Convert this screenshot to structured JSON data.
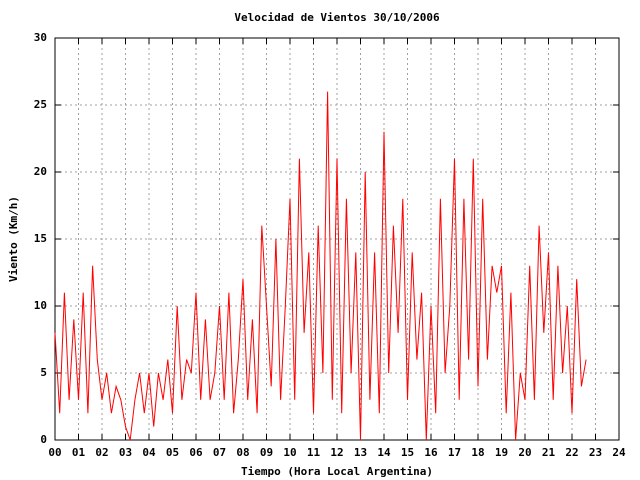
{
  "chart_data": {
    "type": "line",
    "title": "Velocidad de Vientos 30/10/2006",
    "xlabel": "Tiempo (Hora Local Argentina)",
    "ylabel": "Viento (Km/h)",
    "color": "#ff0000",
    "grid": true,
    "xlim": [
      0,
      24
    ],
    "xticks": [
      {
        "value": 0,
        "label": "00"
      },
      {
        "value": 1,
        "label": "01"
      },
      {
        "value": 2,
        "label": "02"
      },
      {
        "value": 3,
        "label": "03"
      },
      {
        "value": 4,
        "label": "04"
      },
      {
        "value": 5,
        "label": "05"
      },
      {
        "value": 6,
        "label": "06"
      },
      {
        "value": 7,
        "label": "07"
      },
      {
        "value": 8,
        "label": "08"
      },
      {
        "value": 9,
        "label": "09"
      },
      10,
      11,
      12,
      13,
      14,
      15,
      16,
      17,
      18,
      19,
      20,
      21,
      22,
      23,
      24
    ],
    "ylim": [
      0,
      30
    ],
    "yticks": [
      0,
      5,
      10,
      15,
      20,
      25,
      30
    ],
    "x": [
      0,
      0.2,
      0.4,
      0.6,
      0.8,
      1,
      1.2,
      1.4,
      1.6,
      1.8,
      2,
      2.2,
      2.4,
      2.6,
      2.8,
      3,
      3.2,
      3.4,
      3.6,
      3.8,
      4,
      4.2,
      4.4,
      4.6,
      4.8,
      5,
      5.2,
      5.4,
      5.6,
      5.8,
      6,
      6.2,
      6.4,
      6.6,
      6.8,
      7,
      7.2,
      7.4,
      7.6,
      7.8,
      8,
      8.2,
      8.4,
      8.6,
      8.8,
      9,
      9.2,
      9.4,
      9.6,
      9.8,
      10,
      10.2,
      10.4,
      10.6,
      10.8,
      11,
      11.2,
      11.4,
      11.6,
      11.8,
      12,
      12.2,
      12.4,
      12.6,
      12.8,
      13,
      13.2,
      13.4,
      13.6,
      13.8,
      14,
      14.2,
      14.4,
      14.6,
      14.8,
      15,
      15.2,
      15.4,
      15.6,
      15.8,
      16,
      16.2,
      16.4,
      16.6,
      16.8,
      17,
      17.2,
      17.4,
      17.6,
      17.8,
      18,
      18.2,
      18.4,
      18.6,
      18.8,
      19,
      19.2,
      19.4,
      19.6,
      19.8,
      20,
      20.2,
      20.4,
      20.6,
      20.8,
      21,
      21.2,
      21.4,
      21.6,
      21.8,
      22,
      22.2,
      22.4,
      22.6
    ],
    "values": [
      8,
      2,
      11,
      3,
      9,
      3,
      11,
      2,
      13,
      6,
      3,
      5,
      2,
      4,
      3,
      1,
      0,
      3,
      5,
      2,
      5,
      1,
      5,
      3,
      6,
      2,
      10,
      3,
      6,
      5,
      11,
      3,
      9,
      3,
      5,
      10,
      3,
      11,
      2,
      6,
      12,
      3,
      9,
      2,
      16,
      10,
      4,
      15,
      3,
      10,
      18,
      3,
      21,
      8,
      14,
      2,
      16,
      5,
      26,
      3,
      21,
      2,
      18,
      5,
      14,
      0,
      20,
      3,
      14,
      2,
      23,
      5,
      16,
      8,
      18,
      3,
      14,
      6,
      11,
      0,
      10,
      2,
      18,
      5,
      10,
      21,
      3,
      18,
      6,
      21,
      4,
      18,
      6,
      13,
      11,
      13,
      2,
      11,
      0,
      5,
      3,
      13,
      3,
      16,
      8,
      14,
      3,
      13,
      5,
      10,
      2,
      12,
      4,
      6
    ]
  }
}
